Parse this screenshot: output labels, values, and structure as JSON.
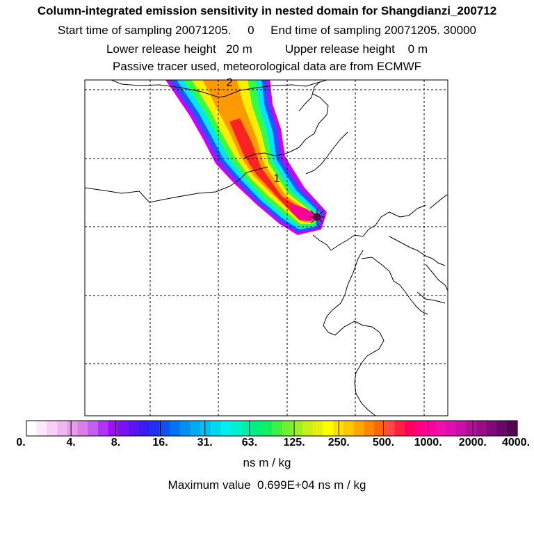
{
  "header": {
    "title": "Column-integrated emission sensitivity in nested domain for Shangdianzi_200712",
    "line2": "Start time of sampling 20071205.     0     End time of sampling 20071205. 30000",
    "line3": "Lower release height   20 m          Upper release height    0 m",
    "line4": "Passive tracer used, meteorological data are from ECMWF"
  },
  "map": {
    "contour_labels": [
      "2",
      "1"
    ],
    "colors": {
      "outer": "#cc00ff",
      "blue": "#2255ff",
      "cyan": "#00e5ff",
      "green": "#33ff44",
      "yellow": "#ffee00",
      "orange": "#ff9900",
      "red": "#ff2222",
      "magenta": "#ff0099",
      "marker": "#5a0a4a"
    }
  },
  "colorbar": {
    "colors": [
      "#ffffff",
      "#fde8fc",
      "#f8cff6",
      "#f0b6ef",
      "#e89ce8",
      "#d97fe6",
      "#c35ff0",
      "#b034f5",
      "#9c10f8",
      "#7a12f2",
      "#5a14f0",
      "#3a1cf2",
      "#2030f5",
      "#1050f5",
      "#0072f5",
      "#0090f0",
      "#00aaf0",
      "#00c0f0",
      "#00d8f0",
      "#00f0f0",
      "#00f0d0",
      "#00f0a8",
      "#00f080",
      "#10f060",
      "#40f040",
      "#70f030",
      "#a0f020",
      "#c8f018",
      "#e8f010",
      "#ffff00",
      "#ffe000",
      "#ffc800",
      "#ffa800",
      "#ff8800",
      "#ff6800",
      "#ff4848",
      "#ff2040",
      "#ff0060",
      "#ff0080",
      "#ff00a0",
      "#f010b0",
      "#e010b0",
      "#c810a8",
      "#b01098",
      "#980c88",
      "#800a78",
      "#680868",
      "#520650"
    ],
    "ticks": [
      "0.",
      "4.",
      "8.",
      "16.",
      "31.",
      "63.",
      "125.",
      "250.",
      "500.",
      "1000.",
      "2000.",
      "4000."
    ]
  },
  "units": "ns m / kg",
  "max_value": "Maximum value  0.699E+04 ns m / kg"
}
